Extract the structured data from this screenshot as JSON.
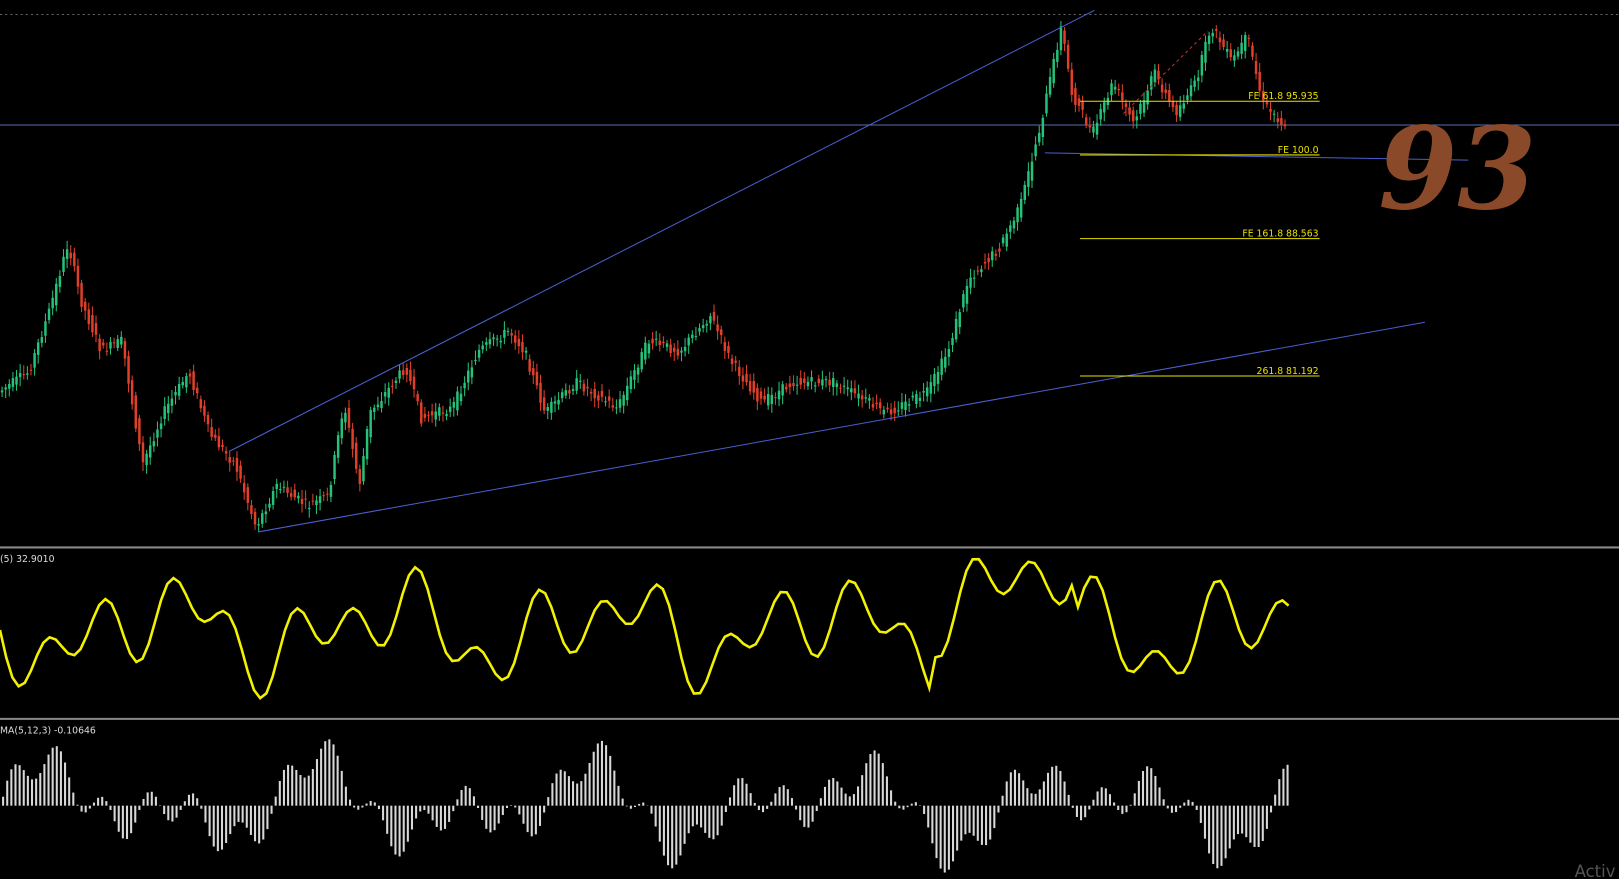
{
  "main_panel": {
    "fib_levels": [
      {
        "label": "FE 61.8 95.935"
      },
      {
        "label": "FE 100.0"
      },
      {
        "label": "FE 161.8 88.563"
      },
      {
        "label": "261.8 81.192"
      }
    ],
    "annotation": "93"
  },
  "oscillator_panel": {
    "label": "(5) 32.9010"
  },
  "histogram_panel": {
    "label": "MA(5,12,3) -0.10646"
  },
  "watermark": "Activ"
}
